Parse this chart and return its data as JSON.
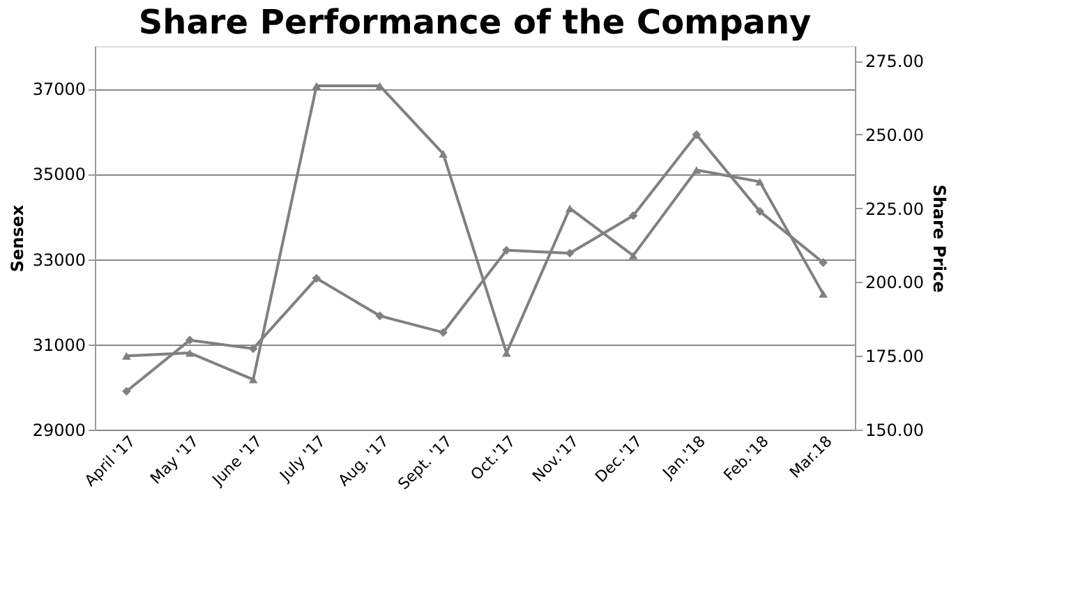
{
  "chart_data": {
    "type": "line",
    "title": "Share Performance of the Company",
    "ylabel": "Sensex",
    "y2label": "Share Price",
    "categories": [
      "April '17",
      "May '17",
      "June '17",
      "July '17",
      "Aug. '17",
      "Sept. '17",
      "Oct.'17",
      "Nov.'17",
      "Dec.'17",
      "Jan.'18",
      "Feb.'18",
      "Mar.18"
    ],
    "series": [
      {
        "color": "#808080",
        "marker": "diamond",
        "values": [
          29900,
          31100,
          30900,
          32550,
          31670,
          31280,
          33210,
          33140,
          34020,
          35920,
          34120,
          32920
        ]
      },
      {
        "color": "#808080",
        "marker": "triangle",
        "axis": "y2",
        "values": [
          175,
          176,
          167,
          266.5,
          266.5,
          243.5,
          176,
          225,
          209,
          238,
          234,
          196
        ]
      }
    ],
    "ylim": [
      29000,
      38000
    ],
    "yticks": [
      29000,
      31000,
      33000,
      35000,
      37000
    ],
    "y2lim": [
      150,
      280
    ],
    "y2ticks": [
      {
        "value": 150,
        "label": "150.00"
      },
      {
        "value": 175,
        "label": "175.00"
      },
      {
        "value": 200,
        "label": "200.00"
      },
      {
        "value": 225,
        "label": "225.00"
      },
      {
        "value": 250,
        "label": "250.00"
      },
      {
        "value": 275,
        "label": "275.00"
      }
    ],
    "grid": "y",
    "line_style": "solid"
  }
}
